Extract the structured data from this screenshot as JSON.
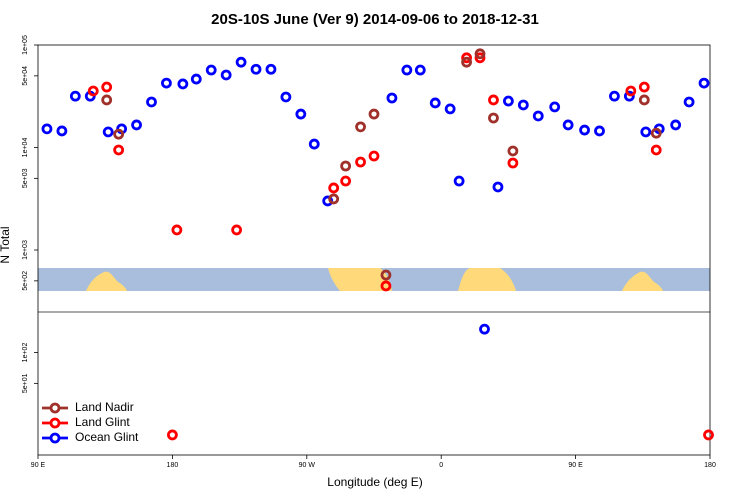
{
  "chart_data": {
    "type": "scatter",
    "title": "20S-10S June (Ver 9)   2014-09-06 to 2018-12-31",
    "x_label": "Longitude (deg E)",
    "y_label": "N Total",
    "ylog": true,
    "xlim": [
      90,
      540
    ],
    "ylim": [
      10,
      100000
    ],
    "xticks": [
      {
        "value": 90,
        "label": "90 E"
      },
      {
        "value": 180,
        "label": "180"
      },
      {
        "value": 270,
        "label": "90 W"
      },
      {
        "value": 360,
        "label": "0"
      },
      {
        "value": 450,
        "label": "90 E"
      },
      {
        "value": 540,
        "label": "180"
      }
    ],
    "yticks": [
      {
        "value": 100000,
        "label": "1e+05"
      },
      {
        "value": 50000,
        "label": "5e+04"
      },
      {
        "value": 10000,
        "label": "1e+04"
      },
      {
        "value": 5000,
        "label": "5e+03"
      },
      {
        "value": 1000,
        "label": "1e+03"
      },
      {
        "value": 500,
        "label": "5e+02"
      },
      {
        "value": 100,
        "label": "1e+02"
      },
      {
        "value": 50,
        "label": "5e+01"
      }
    ],
    "legend": "bottom-left",
    "series": [
      {
        "name": "Land Nadir",
        "color": "#a0302a",
        "x": [
          136,
          144,
          288,
          296,
          306,
          315,
          323,
          377,
          386,
          395,
          408,
          496,
          504
        ],
        "values": [
          29100,
          13500,
          3150,
          6600,
          15900,
          21200,
          570,
          68000,
          82000,
          19400,
          9250,
          29100,
          13800
        ]
      },
      {
        "name": "Land Glint",
        "color": "#ff0000",
        "x": [
          127,
          136,
          144,
          183,
          223,
          288,
          296,
          306,
          315,
          323,
          377,
          386,
          395,
          408,
          487,
          496,
          504,
          180,
          539
        ],
        "values": [
          35600,
          38900,
          9460,
          1570,
          1570,
          4030,
          4710,
          7220,
          8260,
          446,
          75000,
          75000,
          29100,
          7060,
          35600,
          38900,
          9460,
          15.7,
          15.7
        ]
      },
      {
        "name": "Ocean Glint",
        "color": "#0000ff",
        "x": [
          96,
          106,
          115,
          125,
          137,
          146,
          156,
          166,
          176,
          187,
          196,
          206,
          216,
          226,
          236,
          246,
          256,
          266,
          275,
          284,
          327,
          337,
          346,
          356,
          366,
          372,
          398,
          405,
          415,
          425,
          436,
          445,
          456,
          466,
          476,
          486,
          497,
          506,
          517,
          526,
          536,
          389
        ],
        "values": [
          15200,
          14500,
          31700,
          31700,
          14200,
          15200,
          16600,
          27800,
          42500,
          41700,
          46500,
          57000,
          51000,
          68000,
          58000,
          58000,
          31100,
          21200,
          10800,
          3010,
          30400,
          57000,
          57000,
          27200,
          23800,
          4710,
          4120,
          28400,
          26000,
          20300,
          24900,
          16600,
          14800,
          14500,
          31700,
          31700,
          14200,
          15200,
          16600,
          27800,
          42500,
          169
        ]
      }
    ]
  }
}
